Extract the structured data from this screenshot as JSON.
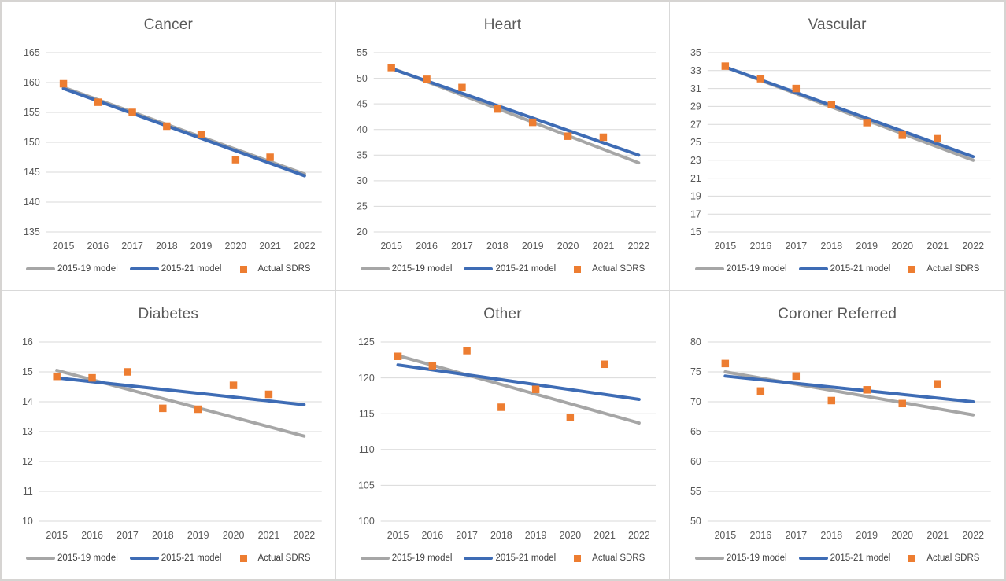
{
  "colors": {
    "model_2015_19": "#a6a6a6",
    "model_2015_21": "#3e6cb5",
    "actual_sdrs": "#ed7d31",
    "gridline": "#d9d9d9",
    "tick_text": "#595959",
    "title_text": "#595959",
    "legend_text": "#3f3f3f",
    "panel_border": "#d9d9d9"
  },
  "legend": {
    "model_2015_19": "2015-19 model",
    "model_2015_21": "2015-21 model",
    "actual_sdrs": "Actual SDRS"
  },
  "chart_data": [
    {
      "type": "line",
      "title": "Cancer",
      "xlabel": "",
      "ylabel": "",
      "grid": true,
      "legend_position": "bottom",
      "categories": [
        2015,
        2016,
        2017,
        2018,
        2019,
        2020,
        2021,
        2022
      ],
      "ylim": [
        135,
        165
      ],
      "y_step": 5,
      "series": [
        {
          "name": "2015-19 model",
          "type": "line",
          "color_key": "model_2015_19",
          "start": 159.2,
          "end": 144.7
        },
        {
          "name": "2015-21 model",
          "type": "line",
          "color_key": "model_2015_21",
          "start": 159.0,
          "end": 144.4
        },
        {
          "name": "Actual SDRS",
          "type": "scatter",
          "color_key": "actual_sdrs",
          "values": [
            159.8,
            156.7,
            155.0,
            152.7,
            151.3,
            147.1,
            147.5,
            null
          ]
        }
      ]
    },
    {
      "type": "line",
      "title": "Heart",
      "xlabel": "",
      "ylabel": "",
      "grid": true,
      "legend_position": "bottom",
      "categories": [
        2015,
        2016,
        2017,
        2018,
        2019,
        2020,
        2021,
        2022
      ],
      "ylim": [
        20,
        55
      ],
      "y_step": 5,
      "series": [
        {
          "name": "2015-19 model",
          "type": "line",
          "color_key": "model_2015_19",
          "start": 52.0,
          "end": 33.5
        },
        {
          "name": "2015-21 model",
          "type": "line",
          "color_key": "model_2015_21",
          "start": 51.9,
          "end": 35.0
        },
        {
          "name": "Actual SDRS",
          "type": "scatter",
          "color_key": "actual_sdrs",
          "values": [
            52.1,
            49.8,
            48.2,
            44.0,
            41.4,
            38.7,
            38.5,
            null
          ]
        }
      ]
    },
    {
      "type": "line",
      "title": "Vascular",
      "xlabel": "",
      "ylabel": "",
      "grid": true,
      "legend_position": "bottom",
      "categories": [
        2015,
        2016,
        2017,
        2018,
        2019,
        2020,
        2021,
        2022
      ],
      "ylim": [
        15,
        35
      ],
      "y_step": 2,
      "series": [
        {
          "name": "2015-19 model",
          "type": "line",
          "color_key": "model_2015_19",
          "start": 33.4,
          "end": 23.0
        },
        {
          "name": "2015-21 model",
          "type": "line",
          "color_key": "model_2015_21",
          "start": 33.4,
          "end": 23.4
        },
        {
          "name": "Actual SDRS",
          "type": "scatter",
          "color_key": "actual_sdrs",
          "values": [
            33.5,
            32.1,
            31.0,
            29.2,
            27.2,
            25.8,
            25.4,
            null
          ]
        }
      ]
    },
    {
      "type": "line",
      "title": "Diabetes",
      "xlabel": "",
      "ylabel": "",
      "grid": true,
      "legend_position": "bottom",
      "categories": [
        2015,
        2016,
        2017,
        2018,
        2019,
        2020,
        2021,
        2022
      ],
      "ylim": [
        10,
        16
      ],
      "y_step": 1,
      "series": [
        {
          "name": "2015-19 model",
          "type": "line",
          "color_key": "model_2015_19",
          "start": 15.05,
          "end": 12.85
        },
        {
          "name": "2015-21 model",
          "type": "line",
          "color_key": "model_2015_21",
          "start": 14.8,
          "end": 13.9
        },
        {
          "name": "Actual SDRS",
          "type": "scatter",
          "color_key": "actual_sdrs",
          "values": [
            14.85,
            14.8,
            15.0,
            13.78,
            13.75,
            14.55,
            14.25,
            null
          ]
        }
      ]
    },
    {
      "type": "line",
      "title": "Other",
      "xlabel": "",
      "ylabel": "",
      "grid": true,
      "legend_position": "bottom",
      "categories": [
        2015,
        2016,
        2017,
        2018,
        2019,
        2020,
        2021,
        2022
      ],
      "ylim": [
        100,
        125
      ],
      "y_step": 5,
      "series": [
        {
          "name": "2015-19 model",
          "type": "line",
          "color_key": "model_2015_19",
          "start": 123.1,
          "end": 113.7
        },
        {
          "name": "2015-21 model",
          "type": "line",
          "color_key": "model_2015_21",
          "start": 121.8,
          "end": 117.0
        },
        {
          "name": "Actual SDRS",
          "type": "scatter",
          "color_key": "actual_sdrs",
          "values": [
            123.0,
            121.7,
            123.8,
            115.9,
            118.4,
            114.5,
            121.9,
            null
          ]
        }
      ]
    },
    {
      "type": "line",
      "title": "Coroner Referred",
      "xlabel": "",
      "ylabel": "",
      "grid": true,
      "legend_position": "bottom",
      "categories": [
        2015,
        2016,
        2017,
        2018,
        2019,
        2020,
        2021,
        2022
      ],
      "ylim": [
        50,
        80
      ],
      "y_step": 5,
      "series": [
        {
          "name": "2015-19 model",
          "type": "line",
          "color_key": "model_2015_19",
          "start": 75.0,
          "end": 67.8
        },
        {
          "name": "2015-21 model",
          "type": "line",
          "color_key": "model_2015_21",
          "start": 74.3,
          "end": 70.0
        },
        {
          "name": "Actual SDRS",
          "type": "scatter",
          "color_key": "actual_sdrs",
          "values": [
            76.4,
            71.8,
            74.3,
            70.2,
            72.0,
            69.7,
            73.0,
            null
          ]
        }
      ]
    }
  ]
}
